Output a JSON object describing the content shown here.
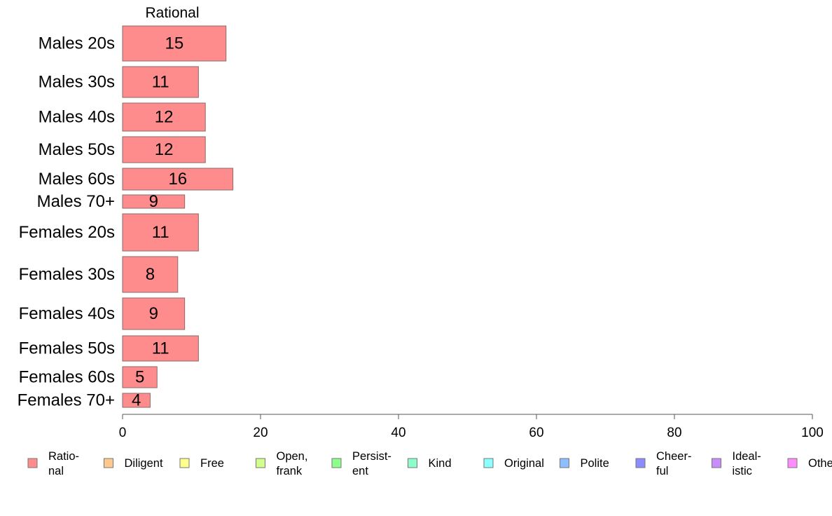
{
  "chart_data": {
    "type": "bar",
    "orientation": "horizontal",
    "column_header": "Rational",
    "categories": [
      "Males 20s",
      "Males 30s",
      "Males 40s",
      "Males 50s",
      "Males 60s",
      "Males 70+",
      "Females 20s",
      "Females 30s",
      "Females 40s",
      "Females 50s",
      "Females 60s",
      "Females 70+"
    ],
    "values": [
      15,
      11,
      12,
      12,
      16,
      9,
      11,
      8,
      9,
      11,
      5,
      4
    ],
    "xlim": [
      0,
      100
    ],
    "xticks": [
      "0",
      "20",
      "40",
      "60",
      "80",
      "100"
    ],
    "bar_color": "#ff8c8c",
    "legend_position": "bottom",
    "legend": [
      {
        "line1": "Ratio-",
        "line2": "nal",
        "color": "#ff8c8c"
      },
      {
        "line1": "Diligent",
        "line2": "",
        "color": "#ffc88c"
      },
      {
        "line1": "Free",
        "line2": "",
        "color": "#ffff8c"
      },
      {
        "line1": "Open,",
        "line2": "frank",
        "color": "#d2ff8c"
      },
      {
        "line1": "Persist-",
        "line2": "ent",
        "color": "#8cff8c"
      },
      {
        "line1": "Kind",
        "line2": "",
        "color": "#8cffc8"
      },
      {
        "line1": "Original",
        "line2": "",
        "color": "#8cffff"
      },
      {
        "line1": "Polite",
        "line2": "",
        "color": "#8cbfff"
      },
      {
        "line1": "Cheer-",
        "line2": "ful",
        "color": "#8c8cff"
      },
      {
        "line1": "Ideal-",
        "line2": "istic",
        "color": "#c88cff"
      },
      {
        "line1": "Others",
        "line2": "",
        "color": "#ff8cff"
      }
    ]
  }
}
